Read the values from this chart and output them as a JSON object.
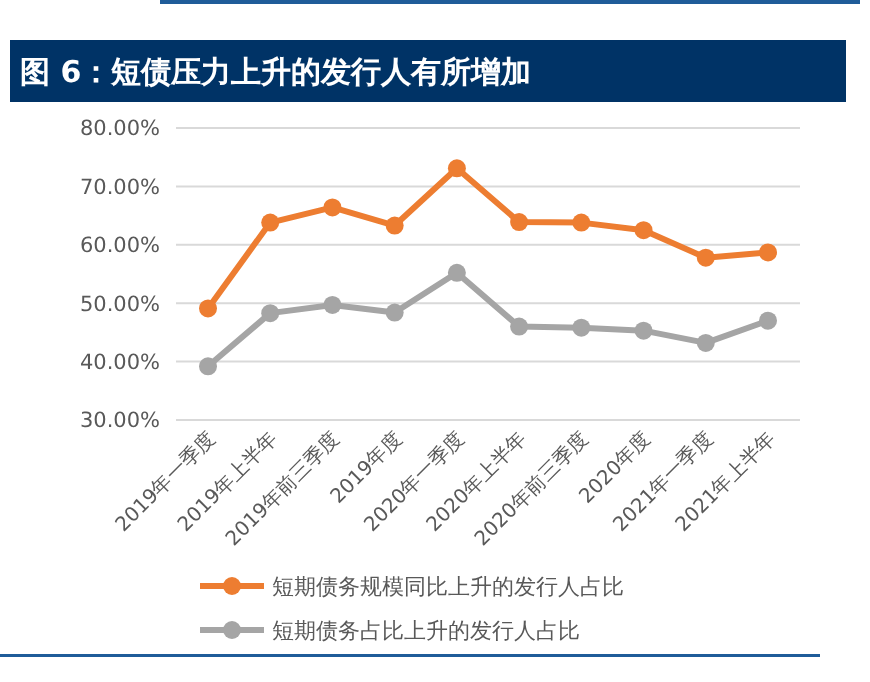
{
  "chart_data": {
    "type": "line",
    "title": "图 6：短债压力上升的发行人有所增加",
    "categories": [
      "2019年一季度",
      "2019年上半年",
      "2019年前三季度",
      "2019年度",
      "2020年一季度",
      "2020年上半年",
      "2020年前三季度",
      "2020年度",
      "2021年一季度",
      "2021年上半年"
    ],
    "series": [
      {
        "name": "短期债务规模同比上升的发行人占比",
        "color": "#ed7d31",
        "values": [
          49.1,
          63.8,
          66.4,
          63.3,
          73.1,
          63.9,
          63.8,
          62.5,
          57.8,
          58.7
        ]
      },
      {
        "name": "短期债务占比上升的发行人占比",
        "color": "#a5a5a5",
        "values": [
          39.2,
          48.3,
          49.7,
          48.4,
          55.2,
          46.0,
          45.8,
          45.3,
          43.2,
          47.0
        ]
      }
    ],
    "ylim": [
      30,
      80
    ],
    "yticks": [
      {
        "value": 30,
        "label": "30.00%"
      },
      {
        "value": 40,
        "label": "40.00%"
      },
      {
        "value": 50,
        "label": "50.00%"
      },
      {
        "value": 60,
        "label": "60.00%"
      },
      {
        "value": 70,
        "label": "70.00%"
      },
      {
        "value": 80,
        "label": "80.00%"
      }
    ],
    "grid": "y",
    "legend": "bottom",
    "marker": "circle",
    "line_style": "solid"
  }
}
